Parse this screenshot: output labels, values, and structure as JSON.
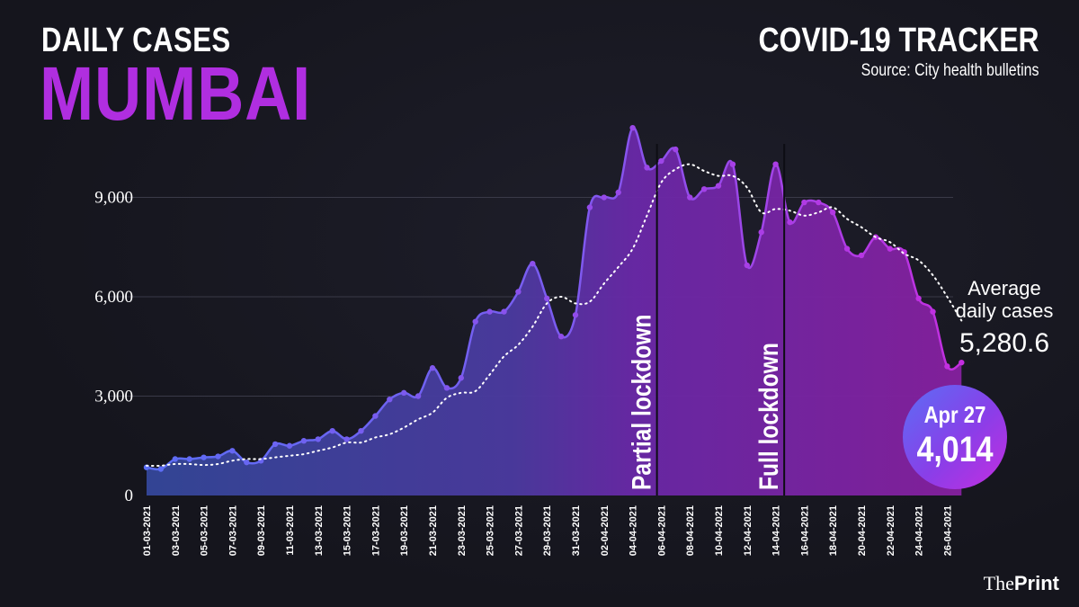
{
  "header": {
    "subtitle": "DAILY CASES",
    "title": "MUMBAI",
    "tracker": "COVID-19 TRACKER",
    "source": "Source: City health bulletins"
  },
  "brand": {
    "prefix": "The",
    "name": "Print"
  },
  "annotations": {
    "partial_lockdown": "Partial lockdown",
    "full_lockdown": "Full lockdown",
    "average_label_1": "Average",
    "average_label_2": "daily cases",
    "average_value": "5,280.6"
  },
  "callout": {
    "date": "Apr 27",
    "value": "4,014"
  },
  "colors": {
    "start_line": "#5b6ef5",
    "end_line": "#c42ee0",
    "title_accent": "#b02ee0",
    "background": "#16161f"
  },
  "chart_data": {
    "type": "area",
    "y_tick_labels": [
      "0",
      "3,000",
      "6,000",
      "9,000"
    ],
    "y_ticks": [
      0,
      3000,
      6000,
      9000
    ],
    "ylim": [
      0,
      11000
    ],
    "grid": true,
    "x_tick_labels": [
      "01-03-2021",
      "03-03-2021",
      "05-03-2021",
      "07-03-2021",
      "09-03-2021",
      "11-03-2021",
      "13-03-2021",
      "15-03-2021",
      "17-03-2021",
      "19-03-2021",
      "21-03-2021",
      "23-03-2021",
      "25-03-2021",
      "27-03-2021",
      "29-03-2021",
      "31-03-2021",
      "02-04-2021",
      "04-04-2021",
      "06-04-2021",
      "08-04-2021",
      "10-04-2021",
      "12-04-2021",
      "14-04-2021",
      "16-04-2021",
      "18-04-2021",
      "20-04-2021",
      "22-04-2021",
      "24-04-2021",
      "26-04-2021"
    ],
    "partial_lockdown_index": 35.7,
    "full_lockdown_index": 44.6,
    "series": [
      {
        "values": [
          850,
          800,
          1100,
          1100,
          1150,
          1180,
          1350,
          1000,
          1050,
          1550,
          1500,
          1650,
          1700,
          1950,
          1700,
          1950,
          2400,
          2900,
          3100,
          3000,
          3850,
          3250,
          3550,
          5250,
          5550,
          5550,
          6150,
          7000,
          5950,
          4800,
          5450,
          8700,
          9000,
          9150,
          11100,
          9900,
          10100,
          10450,
          9000,
          9250,
          9350,
          10000,
          6950,
          7950,
          10000,
          8250,
          8850,
          8850,
          8550,
          7450,
          7250,
          7800,
          7450,
          7350,
          5950,
          5550,
          3900,
          4014
        ]
      },
      {
        "values": [
          900,
          900,
          950,
          950,
          920,
          950,
          1050,
          1100,
          1100,
          1150,
          1200,
          1250,
          1350,
          1450,
          1600,
          1600,
          1750,
          1850,
          2050,
          2300,
          2500,
          2950,
          3100,
          3150,
          3650,
          4200,
          4550,
          5100,
          5800,
          6000,
          5800,
          5850,
          6400,
          6900,
          7450,
          8450,
          9450,
          9850,
          10000,
          9800,
          9650,
          9650,
          9300,
          8550,
          8650,
          8600,
          8450,
          8550,
          8700,
          8350,
          8100,
          7800,
          7650,
          7300,
          7100,
          6650,
          6000,
          5280
        ]
      }
    ]
  }
}
